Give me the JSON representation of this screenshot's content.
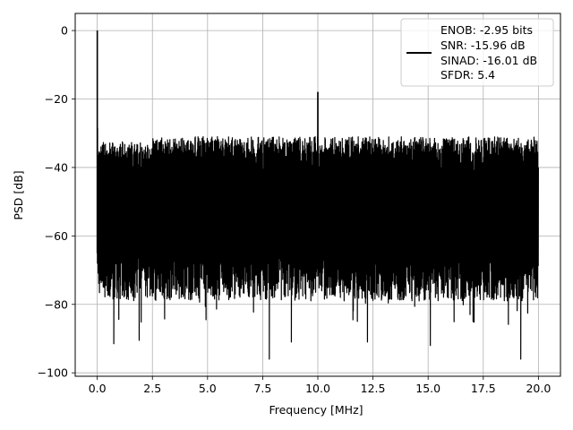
{
  "chart_data": {
    "type": "line",
    "xlabel": "Frequency [MHz]",
    "ylabel": "PSD [dB]",
    "xlim": [
      -1,
      21
    ],
    "ylim": [
      -101,
      5
    ],
    "grid": true,
    "xticks": [
      0,
      2.5,
      5,
      7.5,
      10,
      12.5,
      15,
      17.5,
      20
    ],
    "xtick_labels": [
      "0.0",
      "2.5",
      "5.0",
      "7.5",
      "10.0",
      "12.5",
      "15.0",
      "17.5",
      "20.0"
    ],
    "yticks": [
      0,
      -20,
      -40,
      -60,
      -80,
      -100
    ],
    "ytick_labels": [
      "0",
      "−20",
      "−40",
      "−60",
      "−80",
      "−100"
    ],
    "legend_position": "top-right",
    "legend_lines": [
      "ENOB: -2.95 bits",
      "SNR: -15.96 dB",
      "SINAD: -16.01 dB",
      "SFDR: 5.4"
    ],
    "series_color": "#000000",
    "noise_floor": {
      "x_start": 0,
      "x_end": 20,
      "upper_min": -36,
      "upper_max": -31,
      "lower_typical": -72,
      "lower_deep": -96,
      "median": -55
    },
    "peaks": [
      {
        "x": 0.0,
        "y": 0.0
      },
      {
        "x": 10.0,
        "y": -18.0
      }
    ],
    "dips": [
      {
        "x": 0.75,
        "y": -91.5
      },
      {
        "x": 1.9,
        "y": -90.5
      },
      {
        "x": 7.8,
        "y": -96
      },
      {
        "x": 8.8,
        "y": -91
      },
      {
        "x": 12.25,
        "y": -91
      },
      {
        "x": 15.1,
        "y": -92
      },
      {
        "x": 19.2,
        "y": -96
      }
    ]
  }
}
